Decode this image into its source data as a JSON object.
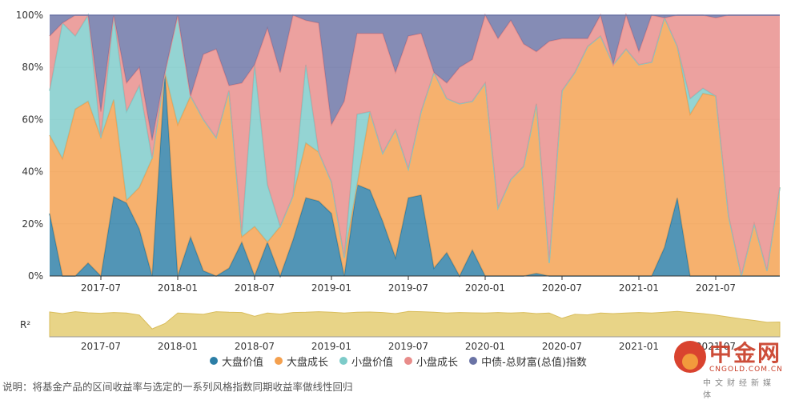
{
  "chart_data": [
    {
      "type": "area",
      "stacked": true,
      "x": [
        "2017-03",
        "2017-04",
        "2017-05",
        "2017-06",
        "2017-07",
        "2017-08",
        "2017-09",
        "2017-10",
        "2017-11",
        "2017-12",
        "2018-01",
        "2018-02",
        "2018-03",
        "2018-04",
        "2018-05",
        "2018-06",
        "2018-07",
        "2018-08",
        "2018-09",
        "2018-10",
        "2018-11",
        "2018-12",
        "2019-01",
        "2019-02",
        "2019-03",
        "2019-04",
        "2019-05",
        "2019-06",
        "2019-07",
        "2019-08",
        "2019-09",
        "2019-10",
        "2019-11",
        "2019-12",
        "2020-01",
        "2020-02",
        "2020-03",
        "2020-04",
        "2020-05",
        "2020-06",
        "2020-07",
        "2020-08",
        "2020-09",
        "2020-10",
        "2020-11",
        "2020-12",
        "2021-01",
        "2021-02",
        "2021-03",
        "2021-04",
        "2021-05",
        "2021-06",
        "2021-07",
        "2021-08",
        "2021-09",
        "2021-10",
        "2021-11",
        "2021-12"
      ],
      "xtick_labels": [
        "2017-07",
        "2018-01",
        "2018-07",
        "2019-01",
        "2019-07",
        "2020-01",
        "2020-07",
        "2021-01",
        "2021-07"
      ],
      "ytick_labels": [
        "0%",
        "20%",
        "40%",
        "60%",
        "80%",
        "100%"
      ],
      "ylim": [
        0,
        100
      ],
      "series": [
        {
          "name": "大盘价值",
          "color": "#2c7ea6",
          "values": [
            24,
            0,
            0,
            5,
            0,
            31,
            28,
            18,
            0,
            78,
            0,
            15,
            2,
            0,
            3,
            13,
            0,
            13,
            0,
            14,
            30,
            29,
            24,
            0,
            35,
            33,
            21,
            7,
            30,
            31,
            3,
            9,
            0,
            10,
            0,
            0,
            0,
            0,
            1,
            0,
            0,
            0,
            0,
            0,
            0,
            0,
            0,
            0,
            11,
            30,
            0,
            0,
            0,
            0,
            0,
            0,
            0,
            0
          ]
        },
        {
          "name": "大盘成长",
          "color": "#f4a04e",
          "values": [
            30,
            45,
            64,
            62,
            53,
            38,
            1,
            16,
            45,
            0,
            58,
            54,
            58,
            53,
            68,
            2,
            19,
            0,
            19,
            17,
            21,
            19,
            12,
            7,
            0,
            30,
            26,
            49,
            11,
            32,
            75,
            59,
            66,
            57,
            74,
            26,
            37,
            42,
            65,
            5,
            71,
            78,
            88,
            92,
            81,
            87,
            81,
            82,
            88,
            58,
            62,
            70,
            69,
            23,
            0,
            20,
            2,
            34
          ]
        },
        {
          "name": "小盘价值",
          "color": "#7dcbc9",
          "values": [
            17,
            52,
            28,
            33,
            0,
            33,
            34,
            39,
            0,
            0,
            42,
            0,
            0,
            0,
            0,
            1,
            62,
            22,
            0,
            0,
            30,
            0,
            0,
            0,
            27,
            0,
            0,
            0,
            0,
            0,
            0,
            0,
            0,
            0,
            0,
            0,
            0,
            0,
            0,
            0,
            0,
            0,
            0,
            0,
            0,
            0,
            0,
            0,
            0,
            0,
            6,
            2,
            0,
            0,
            0,
            0,
            0,
            0
          ]
        },
        {
          "name": "小盘成长",
          "color": "#e88c8a",
          "values": [
            21,
            0,
            8,
            0,
            10,
            0,
            11,
            7,
            7,
            0,
            0,
            0,
            25,
            34,
            2,
            58,
            0,
            60,
            59,
            70,
            17,
            50,
            22,
            60,
            31,
            30,
            46,
            22,
            51,
            30,
            0,
            6,
            14,
            16,
            26,
            65,
            61,
            47,
            20,
            85,
            20,
            13,
            3,
            8,
            0,
            13,
            5,
            18,
            0,
            12,
            32,
            28,
            30,
            77,
            100,
            80,
            98,
            66
          ]
        },
        {
          "name": "中债-总财富(总值)指数",
          "color": "#6a73a5",
          "values": [
            8,
            3,
            0,
            0,
            37,
            0,
            26,
            20,
            48,
            22,
            0,
            31,
            15,
            13,
            27,
            26,
            19,
            5,
            22,
            0,
            2,
            3,
            42,
            33,
            7,
            7,
            7,
            22,
            8,
            7,
            22,
            26,
            20,
            17,
            0,
            9,
            2,
            11,
            14,
            10,
            9,
            9,
            9,
            0,
            19,
            0,
            14,
            0,
            1,
            0,
            0,
            0,
            1,
            0,
            0,
            0,
            0,
            0
          ]
        }
      ]
    },
    {
      "type": "area",
      "ylabel": "R²",
      "color": "#e6cf7a",
      "x": [
        "2017-03",
        "2017-04",
        "2017-05",
        "2017-06",
        "2017-07",
        "2017-08",
        "2017-09",
        "2017-10",
        "2017-11",
        "2017-12",
        "2018-01",
        "2018-02",
        "2018-03",
        "2018-04",
        "2018-05",
        "2018-06",
        "2018-07",
        "2018-08",
        "2018-09",
        "2018-10",
        "2018-11",
        "2018-12",
        "2019-01",
        "2019-02",
        "2019-03",
        "2019-04",
        "2019-05",
        "2019-06",
        "2019-07",
        "2019-08",
        "2019-09",
        "2019-10",
        "2019-11",
        "2019-12",
        "2020-01",
        "2020-02",
        "2020-03",
        "2020-04",
        "2020-05",
        "2020-06",
        "2020-07",
        "2020-08",
        "2020-09",
        "2020-10",
        "2020-11",
        "2020-12",
        "2021-01",
        "2021-02",
        "2021-03",
        "2021-04",
        "2021-05",
        "2021-06",
        "2021-07",
        "2021-08",
        "2021-09",
        "2021-10",
        "2021-11",
        "2021-12"
      ],
      "xtick_labels": [
        "2017-07",
        "2018-01",
        "2018-07",
        "2019-01",
        "2019-07",
        "2020-01",
        "2020-07",
        "2021-01",
        "2021-07"
      ],
      "ylim": [
        0,
        1
      ],
      "values": [
        0.94,
        0.88,
        0.95,
        0.91,
        0.89,
        0.92,
        0.9,
        0.82,
        0.3,
        0.5,
        0.9,
        0.88,
        0.85,
        0.95,
        0.93,
        0.92,
        0.78,
        0.9,
        0.86,
        0.92,
        0.93,
        0.95,
        0.93,
        0.9,
        0.93,
        0.94,
        0.92,
        0.88,
        0.96,
        0.95,
        0.93,
        0.9,
        0.92,
        0.91,
        0.9,
        0.92,
        0.9,
        0.92,
        0.88,
        0.9,
        0.7,
        0.85,
        0.83,
        0.9,
        0.88,
        0.9,
        0.92,
        0.9,
        0.93,
        0.96,
        0.92,
        0.88,
        0.82,
        0.75,
        0.68,
        0.62,
        0.55,
        0.56
      ]
    }
  ],
  "legend": [
    {
      "label": "大盘价值",
      "color": "#2c7ea6"
    },
    {
      "label": "大盘成长",
      "color": "#f4a04e"
    },
    {
      "label": "小盘价值",
      "color": "#7dcbc9"
    },
    {
      "label": "小盘成长",
      "color": "#e88c8a"
    },
    {
      "label": "中债-总财富(总值)指数",
      "color": "#6a73a5"
    }
  ],
  "footnote": "说明：将基金产品的区间收益率与选定的一系列风格指数同期收益率做线性回归",
  "watermark": {
    "title": "中金网",
    "domain": "CNGOLD.COM.CN",
    "tagline": "中文财经新媒体"
  }
}
